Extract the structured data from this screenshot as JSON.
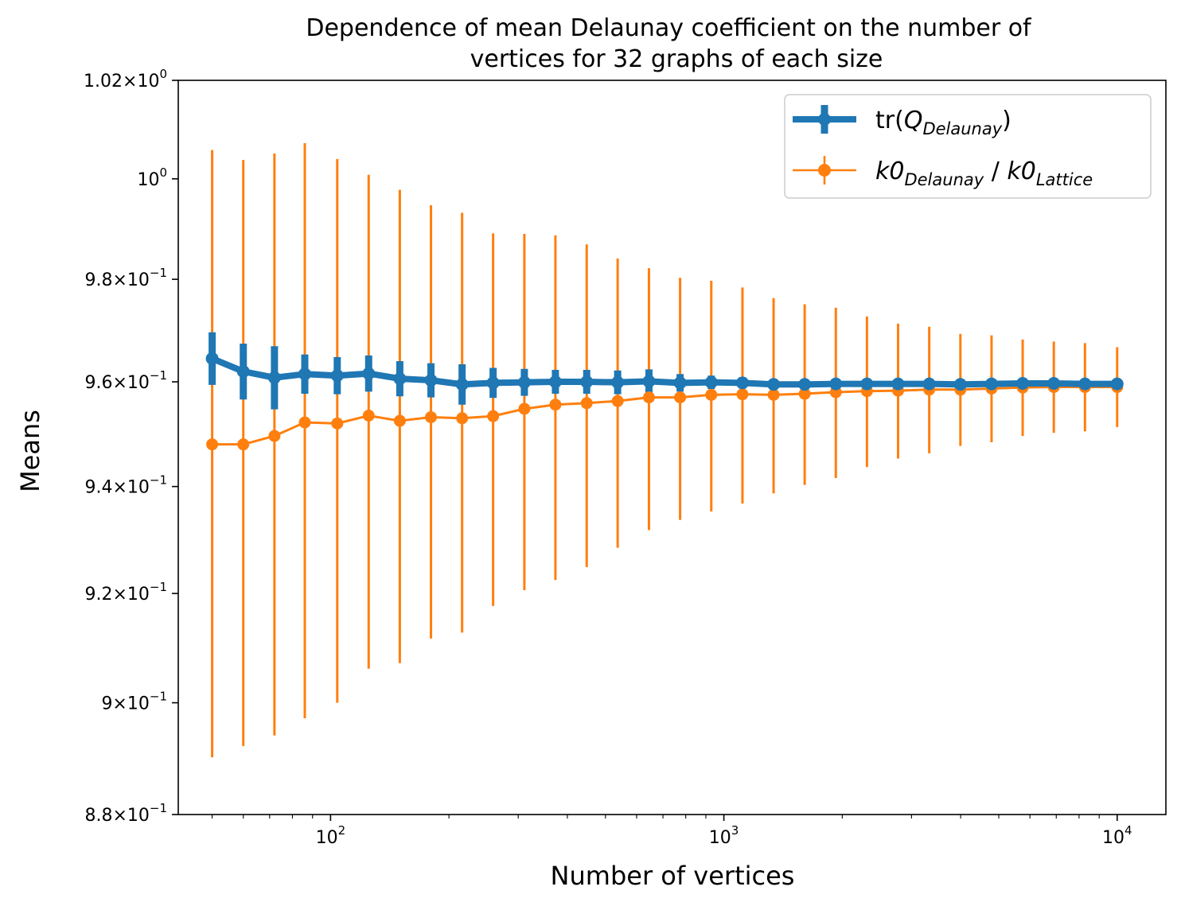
{
  "chart_data": {
    "type": "line",
    "title_line1": "Dependence of mean Delaunay coefficient on the number of",
    "title_line2": "vertices for 32 graphs of each size",
    "xlabel": "Number of vertices",
    "ylabel": "Means",
    "xscale": "log",
    "yscale": "log",
    "xlim": [
      41,
      13300
    ],
    "ylim": [
      0.88,
      1.02
    ],
    "x_ticks": [
      {
        "value": 100,
        "base": "10",
        "exp": "2"
      },
      {
        "value": 1000,
        "base": "10",
        "exp": "3"
      },
      {
        "value": 10000,
        "base": "10",
        "exp": "4"
      }
    ],
    "y_ticks": [
      {
        "value": 1.02,
        "mant": "1.02",
        "exp": "0"
      },
      {
        "value": 1.0,
        "mant": "",
        "exp": "0"
      },
      {
        "value": 0.98,
        "mant": "9.8",
        "exp": "−1"
      },
      {
        "value": 0.96,
        "mant": "9.6",
        "exp": "−1"
      },
      {
        "value": 0.94,
        "mant": "9.4",
        "exp": "−1"
      },
      {
        "value": 0.92,
        "mant": "9.2",
        "exp": "−1"
      },
      {
        "value": 0.9,
        "mant": "9",
        "exp": "−1"
      },
      {
        "value": 0.88,
        "mant": "8.8",
        "exp": "−1"
      }
    ],
    "grid": false,
    "legend_position": "top-right",
    "x": [
      50,
      60,
      72,
      86,
      104,
      125,
      150,
      180,
      216,
      259,
      311,
      373,
      448,
      537,
      645,
      774,
      929,
      1115,
      1338,
      1605,
      1926,
      2311,
      2773,
      3328,
      3994,
      4793,
      5751,
      6901,
      8282,
      10000
    ],
    "series": [
      {
        "name_main": "tr(",
        "name_italic": "Q",
        "name_sub": "Delaunay",
        "name_end": ")",
        "color": "#1f77b4",
        "values": [
          0.9645,
          0.962,
          0.9608,
          0.9615,
          0.9612,
          0.9616,
          0.9606,
          0.9603,
          0.9595,
          0.9598,
          0.9599,
          0.96,
          0.96,
          0.9599,
          0.9601,
          0.9598,
          0.9599,
          0.9598,
          0.9595,
          0.9595,
          0.9596,
          0.9596,
          0.9596,
          0.9596,
          0.9595,
          0.9596,
          0.9597,
          0.9597,
          0.9596,
          0.9596
        ],
        "errors": [
          0.0051,
          0.0054,
          0.0061,
          0.0038,
          0.0036,
          0.0035,
          0.0034,
          0.0033,
          0.0039,
          0.0029,
          0.0026,
          0.0023,
          0.0023,
          0.0023,
          0.0023,
          0.0017,
          0.0013,
          0.0011,
          0.0006,
          0.0006,
          0.0005,
          0.0005,
          0.0004,
          0.0004,
          0.0004,
          0.0004,
          0.0003,
          0.0003,
          0.0003,
          0.0003
        ]
      },
      {
        "name_a": "k0",
        "name_a_sub": "Delaunay",
        "name_sep": " / ",
        "name_b": "k0",
        "name_b_sub": "Lattice",
        "color": "#ff7f0e",
        "values": [
          0.948,
          0.948,
          0.9496,
          0.9522,
          0.952,
          0.9535,
          0.9525,
          0.9532,
          0.953,
          0.9534,
          0.9548,
          0.9556,
          0.9559,
          0.9563,
          0.957,
          0.957,
          0.9575,
          0.9576,
          0.9575,
          0.9577,
          0.958,
          0.9582,
          0.9583,
          0.9585,
          0.9585,
          0.9587,
          0.9589,
          0.959,
          0.959,
          0.959
        ],
        "errors": [
          0.0578,
          0.0558,
          0.0555,
          0.055,
          0.052,
          0.0473,
          0.0453,
          0.0415,
          0.0402,
          0.0357,
          0.0342,
          0.0331,
          0.031,
          0.0278,
          0.0252,
          0.0233,
          0.0222,
          0.0208,
          0.0188,
          0.0174,
          0.0164,
          0.0145,
          0.013,
          0.0122,
          0.0108,
          0.0103,
          0.0093,
          0.0088,
          0.0085,
          0.0077
        ]
      }
    ]
  }
}
